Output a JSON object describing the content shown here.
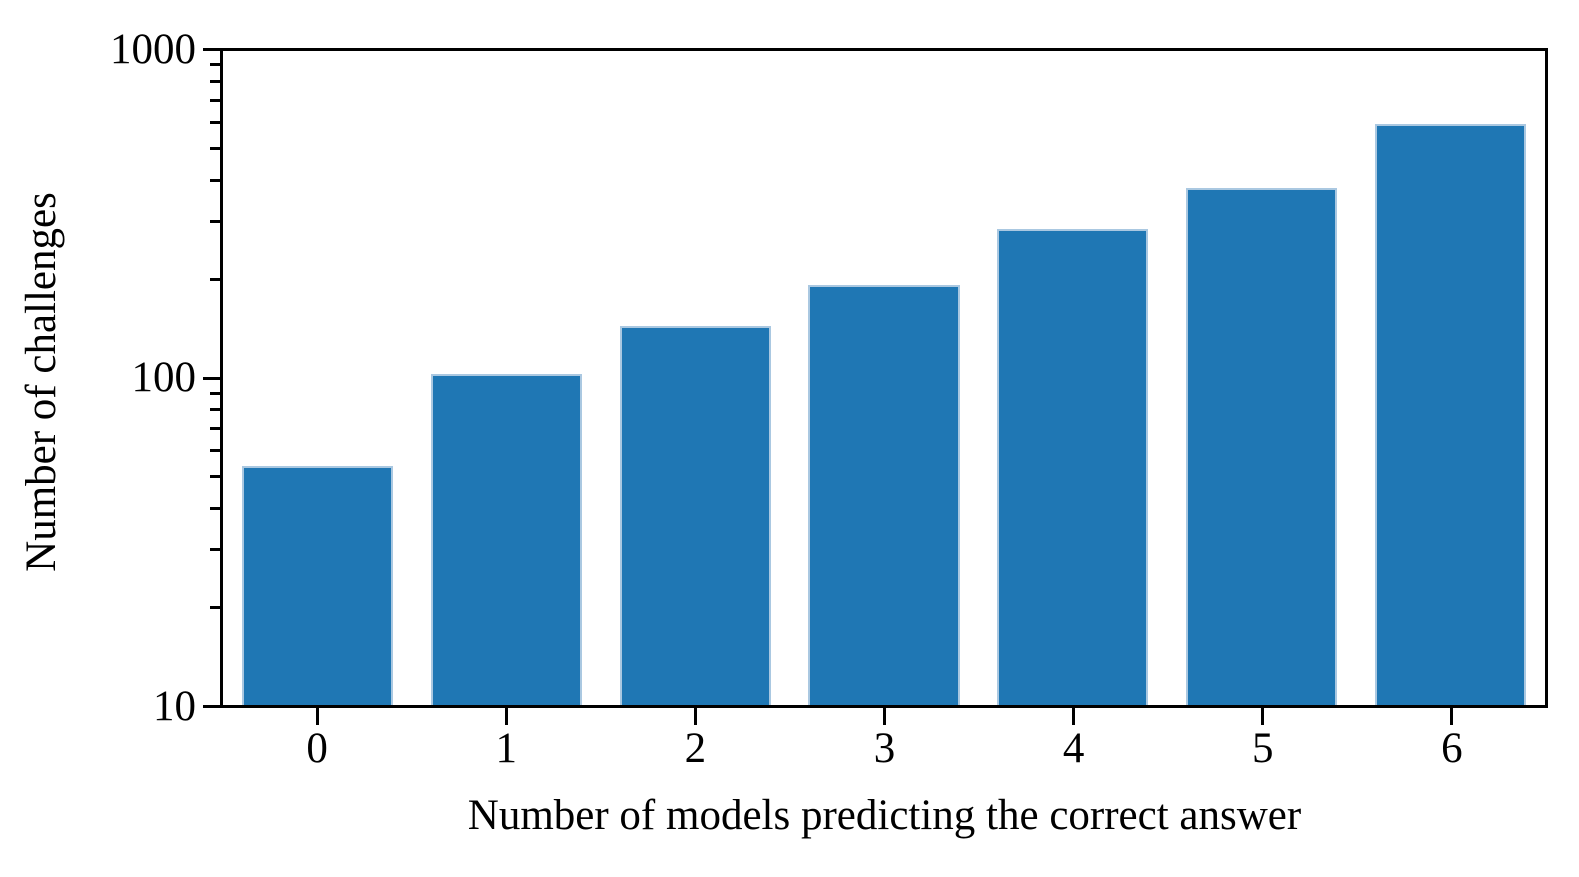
{
  "chart_data": {
    "type": "bar",
    "title": "",
    "xlabel": "Number of models predicting the correct answer",
    "ylabel": "Number of challenges",
    "categories": [
      "0",
      "1",
      "2",
      "3",
      "4",
      "5",
      "6"
    ],
    "values": [
      54,
      103,
      144,
      192,
      285,
      380,
      600
    ],
    "yscale": "log",
    "ylim": [
      10,
      1000
    ],
    "yticks": [
      10,
      100,
      1000
    ],
    "ytick_labels": [
      "10",
      "100",
      "1000"
    ],
    "bar_color": "#1f77b4",
    "bar_edge_color": "#aac8e1",
    "bar_width_fraction": 0.8,
    "grid": false,
    "legend": false,
    "spine_color": "#000000",
    "text_color": "#000000"
  }
}
